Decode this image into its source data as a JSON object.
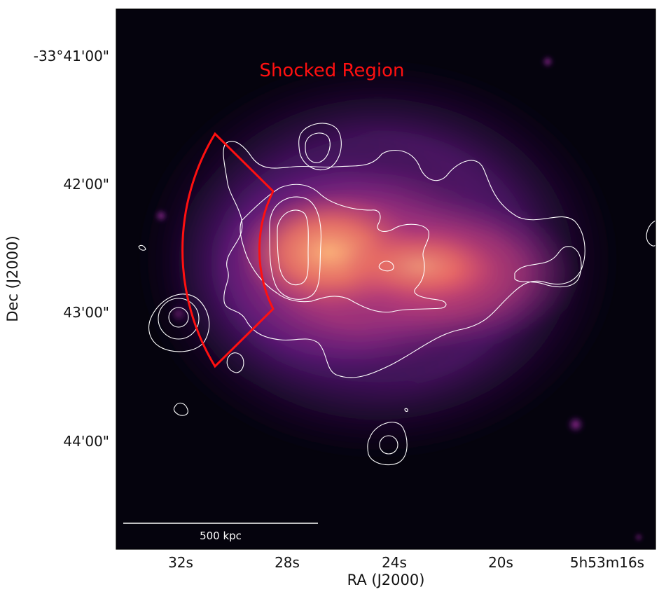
{
  "figure": {
    "region_label": "Shocked Region",
    "scalebar_label": "500 kpc",
    "xlabel": "RA (J2000)",
    "ylabel": "Dec (J2000)",
    "x_ticks": [
      "32s",
      "28s",
      "24s",
      "20s",
      "5h53m16s"
    ],
    "y_ticks": [
      "-33°41'00\"",
      "42'00\"",
      "43'00\"",
      "44'00\""
    ],
    "colormap": "magma",
    "colors": {
      "background": "#05030d",
      "contour": "#ffffff",
      "shock_region": "#ff1010",
      "peak": "#f7a070"
    }
  }
}
